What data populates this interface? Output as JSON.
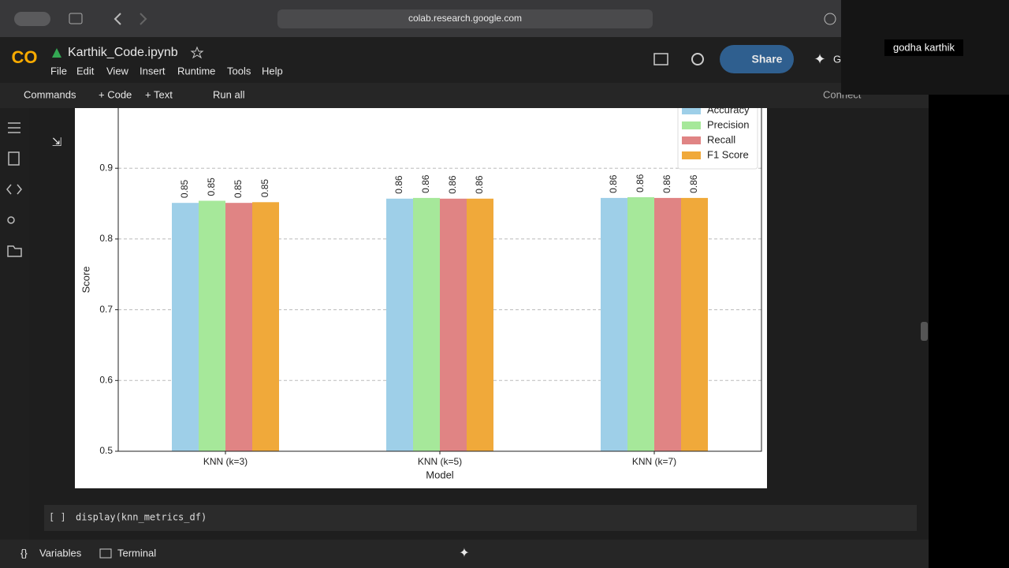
{
  "browser": {
    "url": "colab.research.google.com"
  },
  "header": {
    "logo": "CO",
    "title": "Karthik_Code.ipynb",
    "menu": [
      "File",
      "Edit",
      "View",
      "Insert",
      "Runtime",
      "Tools",
      "Help"
    ],
    "share": "Share",
    "gemini": "G"
  },
  "toolbar": {
    "items": [
      "Commands",
      "+ Code",
      "+ Text",
      "Run all"
    ],
    "connect": "Connect"
  },
  "participant": "godha karthik",
  "chart_data": {
    "type": "bar",
    "xlabel": "Model",
    "ylabel": "Score",
    "categories": [
      "KNN (k=3)",
      "KNN (k=5)",
      "KNN (k=7)"
    ],
    "series": [
      {
        "name": "Accuracy",
        "color": "#9ecfe8",
        "values": [
          0.851,
          0.857,
          0.858
        ],
        "value_labels": [
          "0.85",
          "0.86",
          "0.86"
        ]
      },
      {
        "name": "Precision",
        "color": "#a6e89a",
        "values": [
          0.854,
          0.858,
          0.859
        ],
        "value_labels": [
          "0.85",
          "0.86",
          "0.86"
        ]
      },
      {
        "name": "Recall",
        "color": "#e08484",
        "values": [
          0.851,
          0.857,
          0.858
        ],
        "value_labels": [
          "0.85",
          "0.86",
          "0.86"
        ]
      },
      {
        "name": "F1 Score",
        "color": "#f0a93a",
        "values": [
          0.852,
          0.857,
          0.858
        ],
        "value_labels": [
          "0.85",
          "0.86",
          "0.86"
        ]
      }
    ],
    "ylim": [
      0.5,
      0.985
    ],
    "yticks": [
      0.5,
      0.6,
      0.7,
      0.8,
      0.9
    ],
    "grid": true,
    "legend": "upper right"
  },
  "cell": {
    "prompt": "[ ]",
    "code": "display(knn_metrics_df)"
  },
  "footer": {
    "items": [
      "Variables",
      "Terminal"
    ]
  }
}
